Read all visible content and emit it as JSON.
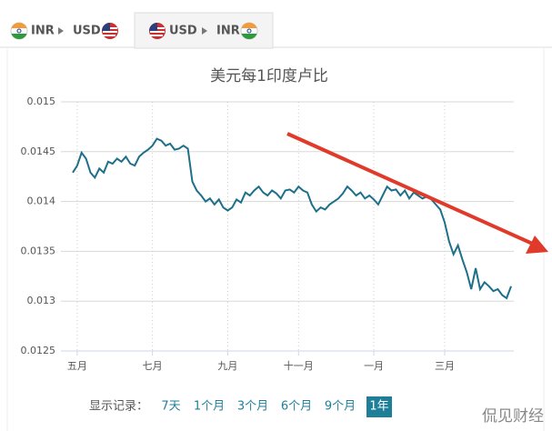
{
  "tabs": [
    {
      "from": "INR",
      "to": "USD"
    },
    {
      "from": "USD",
      "to": "INR"
    }
  ],
  "chart_data": {
    "type": "line",
    "title": "美元每1印度卢比",
    "color": "#1d6f8a",
    "grid": true,
    "categories": [
      null,
      "五月",
      null,
      null,
      null,
      null,
      null,
      null,
      null,
      null,
      null,
      null,
      null,
      null,
      null,
      null,
      null,
      null,
      "七月",
      null,
      null,
      null,
      null,
      null,
      null,
      null,
      null,
      null,
      null,
      null,
      null,
      null,
      null,
      null,
      null,
      "九月",
      null,
      null,
      null,
      null,
      null,
      null,
      null,
      null,
      null,
      null,
      null,
      null,
      null,
      null,
      null,
      "十一月",
      null,
      null,
      null,
      null,
      null,
      null,
      null,
      null,
      null,
      null,
      null,
      null,
      null,
      null,
      null,
      null,
      "一月",
      null,
      null,
      null,
      null,
      null,
      null,
      null,
      null,
      null,
      null,
      null,
      null,
      null,
      null,
      null,
      "三月",
      null,
      null,
      null,
      null,
      null,
      null,
      null,
      null,
      null,
      null,
      null,
      null,
      null,
      null,
      null
    ],
    "values": [
      0.01429,
      0.01436,
      0.01449,
      0.01443,
      0.01429,
      0.01424,
      0.01433,
      0.01429,
      0.0144,
      0.01438,
      0.01443,
      0.0144,
      0.01445,
      0.01438,
      0.01436,
      0.01445,
      0.01449,
      0.01452,
      0.01456,
      0.01463,
      0.01461,
      0.01456,
      0.01458,
      0.01452,
      0.01453,
      0.01456,
      0.01453,
      0.0142,
      0.01411,
      0.01406,
      0.014,
      0.01403,
      0.01397,
      0.01402,
      0.01394,
      0.01391,
      0.01394,
      0.01402,
      0.01399,
      0.01409,
      0.01406,
      0.01411,
      0.01415,
      0.01409,
      0.01406,
      0.01411,
      0.01408,
      0.01403,
      0.01411,
      0.01412,
      0.01409,
      0.01415,
      0.01411,
      0.01409,
      0.01397,
      0.0139,
      0.01394,
      0.01392,
      0.01397,
      0.014,
      0.01403,
      0.01408,
      0.01415,
      0.01411,
      0.01406,
      0.01409,
      0.01403,
      0.01406,
      0.01402,
      0.01397,
      0.01406,
      0.01415,
      0.01411,
      0.01412,
      0.01406,
      0.01411,
      0.01403,
      0.01409,
      0.01406,
      0.01403,
      0.01405,
      0.01402,
      0.01397,
      0.01392,
      0.01379,
      0.0136,
      0.01347,
      0.01356,
      0.01342,
      0.01329,
      0.01312,
      0.01333,
      0.01312,
      0.01319,
      0.01315,
      0.0131,
      0.01312,
      0.01306,
      0.01303,
      0.01315
    ],
    "ylim": [
      0.0125,
      0.015
    ],
    "yticks": [
      0.015,
      0.0145,
      0.014,
      0.0135,
      0.013,
      0.0125
    ]
  },
  "range_selector": {
    "label": "显示记录：",
    "options": [
      "7天",
      "1个月",
      "3个月",
      "6个月",
      "9个月",
      "1年"
    ],
    "active": "1年"
  },
  "watermark": "侃见财经"
}
